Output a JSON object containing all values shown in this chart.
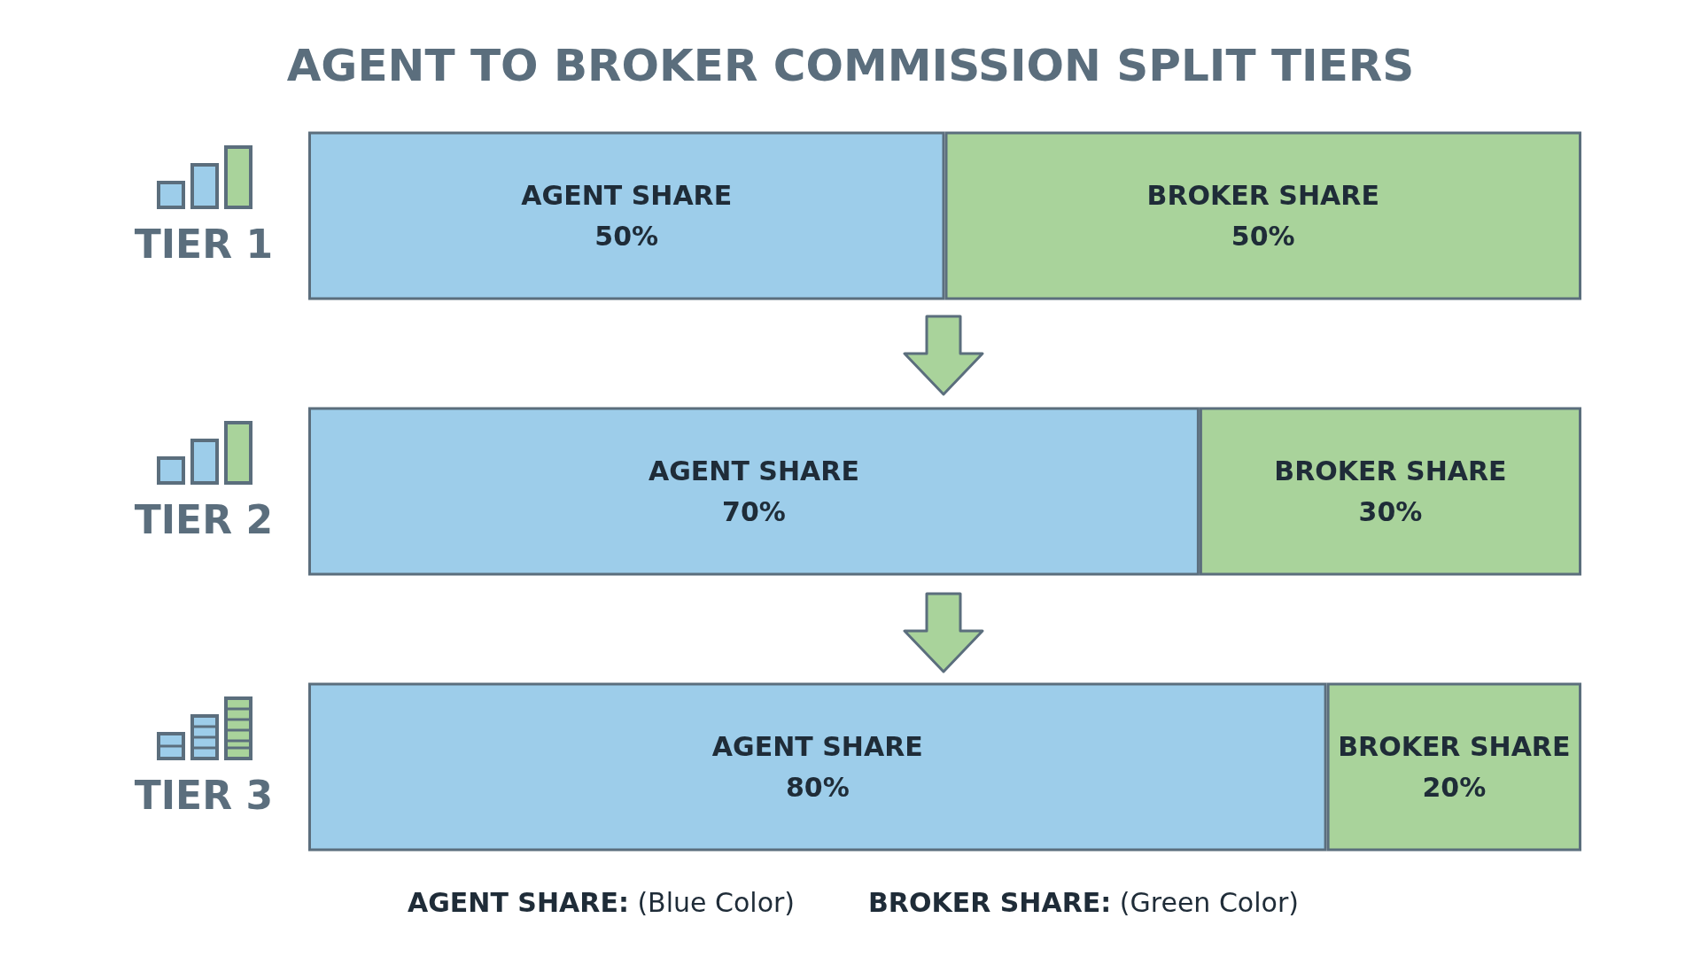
{
  "chart_data": {
    "type": "bar",
    "title": "AGENT TO BROKER COMMISSION SPLIT TIERS",
    "orientation": "horizontal",
    "stacked": true,
    "categories": [
      "TIER 1",
      "TIER 2",
      "TIER 3"
    ],
    "xlim": [
      0,
      100
    ],
    "tick_labels": "y",
    "grid": false,
    "legend": false,
    "series": [
      {
        "name": "AGENT SHARE",
        "color": "#9dcdea",
        "values": [
          50,
          70,
          80
        ],
        "value_labels": [
          "50%",
          "70%",
          "80%"
        ]
      },
      {
        "name": "BROKER SHARE",
        "color": "#a9d39b",
        "values": [
          50,
          30,
          20
        ],
        "value_labels": [
          "50%",
          "30%",
          "20%"
        ]
      }
    ],
    "annotations": [
      "AGENT SHARE: (Blue Color)",
      "BROKER SHARE: (Green Color)"
    ]
  }
}
